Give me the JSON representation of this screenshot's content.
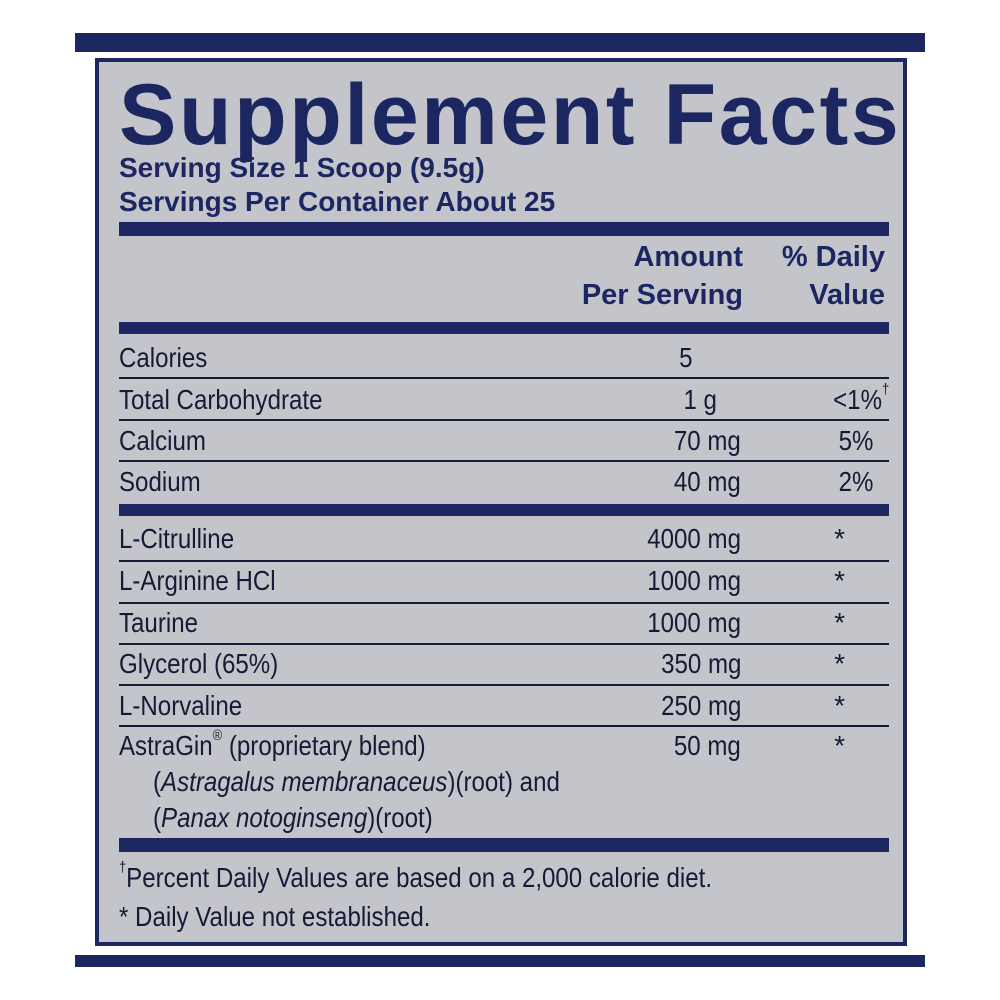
{
  "label": {
    "title": "Supplement Facts",
    "serving_size": "Serving Size 1 Scoop (9.5g)",
    "servings_per_container": "Servings Per Container About 25",
    "columns": {
      "amount_line1": "Amount",
      "amount_line2": "Per Serving",
      "dv_line1": "% Daily",
      "dv_line2": "Value"
    },
    "nutrients": [
      {
        "name": "Calories",
        "amount": "5",
        "dv": ""
      },
      {
        "name": "Total Carbohydrate",
        "amount": "1 g",
        "dv": "<1%",
        "dv_mark": "†"
      },
      {
        "name": "Calcium",
        "amount": "70 mg",
        "dv": "5%"
      },
      {
        "name": "Sodium",
        "amount": "40 mg",
        "dv": "2%"
      }
    ],
    "ingredients": [
      {
        "name": "L-Citrulline",
        "amount": "4000 mg",
        "dv": "*"
      },
      {
        "name": "L-Arginine HCl",
        "amount": "1000 mg",
        "dv": "*"
      },
      {
        "name": "Taurine",
        "amount": "1000 mg",
        "dv": "*"
      },
      {
        "name": "Glycerol (65%)",
        "amount": "350 mg",
        "dv": "*"
      },
      {
        "name": "L-Norvaline",
        "amount": "250 mg",
        "dv": "*"
      }
    ],
    "blend": {
      "name": "AstraGin",
      "reg_mark": "®",
      "name_suffix": " (proprietary blend)",
      "amount": "50 mg",
      "dv": "*",
      "line2_open": "(",
      "line2_italic": "Astragalus membranaceus",
      "line2_rest": ")(root) and",
      "line3_open": "(",
      "line3_italic": "Panax notoginseng",
      "line3_rest": ")(root)"
    },
    "footnotes": {
      "dagger": "†",
      "percent_dv": "Percent Daily Values are based on a 2,000 calorie diet.",
      "not_established": "* Daily Value not established."
    }
  },
  "colors": {
    "navy": "#1c2762",
    "panel_grey": "#c3c5ca",
    "text": "#161a36"
  }
}
